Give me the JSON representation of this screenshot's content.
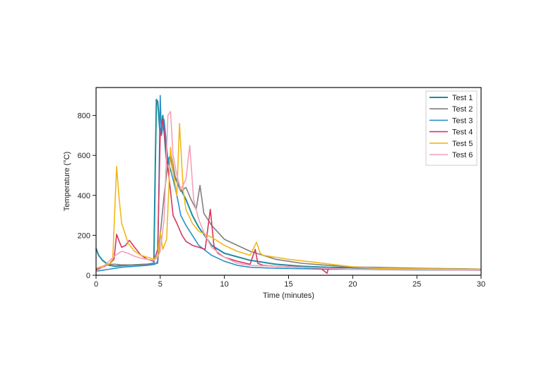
{
  "chart_data": {
    "type": "line",
    "xlabel": "Time (minutes)",
    "ylabel": "Temperature (°C)",
    "xlim": [
      0,
      30
    ],
    "ylim": [
      0,
      940
    ],
    "xticks": [
      0,
      5,
      10,
      15,
      20,
      25,
      30
    ],
    "yticks": [
      0,
      200,
      400,
      600,
      800
    ],
    "grid": false,
    "legend_position": "top-right",
    "series": [
      {
        "name": "Test 1",
        "color": "#1e8c9e",
        "x": [
          0,
          0.2,
          0.5,
          1,
          1.5,
          2,
          3,
          4,
          4.5,
          4.6,
          4.7,
          4.8,
          5.0,
          5.2,
          5.5,
          5.8,
          6,
          6.3,
          6.6,
          7,
          7.5,
          8,
          9,
          10,
          12,
          14,
          16,
          18,
          20,
          22,
          25,
          28,
          30
        ],
        "y": [
          135,
          100,
          75,
          50,
          45,
          48,
          52,
          55,
          60,
          500,
          880,
          870,
          700,
          800,
          560,
          600,
          520,
          470,
          430,
          380,
          300,
          240,
          150,
          110,
          75,
          55,
          45,
          40,
          38,
          35,
          33,
          32,
          30
        ]
      },
      {
        "name": "Test 2",
        "color": "#7f7f7f",
        "x": [
          0,
          0.5,
          1,
          1.5,
          2,
          3,
          4,
          4.8,
          5.0,
          5.3,
          5.6,
          5.9,
          6.2,
          6.6,
          7,
          7.4,
          7.8,
          8.1,
          8.4,
          9,
          10,
          12,
          14,
          16,
          18,
          20,
          25,
          30
        ],
        "y": [
          30,
          45,
          55,
          55,
          52,
          52,
          55,
          60,
          200,
          400,
          560,
          590,
          480,
          420,
          440,
          380,
          330,
          450,
          310,
          250,
          180,
          120,
          80,
          60,
          50,
          42,
          35,
          30
        ]
      },
      {
        "name": "Test 3",
        "color": "#2a8fc9",
        "x": [
          0,
          0.5,
          1,
          1.5,
          2,
          3,
          4,
          4.6,
          4.8,
          4.9,
          5.0,
          5.1,
          5.3,
          5.6,
          6,
          6.3,
          6.6,
          7,
          7.5,
          8,
          9,
          10,
          11,
          12,
          14,
          16,
          18,
          20,
          22,
          25,
          30
        ],
        "y": [
          20,
          25,
          30,
          35,
          40,
          45,
          50,
          55,
          70,
          450,
          900,
          700,
          780,
          580,
          480,
          400,
          300,
          250,
          200,
          150,
          100,
          70,
          50,
          40,
          35,
          33,
          30,
          30,
          28,
          26,
          25
        ]
      },
      {
        "name": "Test 4",
        "color": "#d6375f",
        "x": [
          0,
          0.5,
          1,
          1.4,
          1.6,
          1.8,
          2,
          2.3,
          2.6,
          3,
          3.5,
          4,
          4.5,
          4.8,
          5.0,
          5.2,
          5.5,
          5.8,
          6,
          6.3,
          6.7,
          7,
          7.5,
          8,
          8.5,
          8.9,
          9.2,
          9.5,
          10,
          11,
          12,
          12.4,
          12.6,
          13,
          14,
          16,
          17.5,
          18,
          18.1,
          20,
          25,
          30
        ],
        "y": [
          25,
          40,
          55,
          80,
          205,
          170,
          140,
          150,
          175,
          140,
          100,
          80,
          70,
          130,
          700,
          780,
          600,
          420,
          300,
          260,
          200,
          170,
          150,
          140,
          130,
          330,
          140,
          110,
          90,
          70,
          55,
          130,
          60,
          50,
          45,
          40,
          35,
          10,
          35,
          30,
          28,
          26
        ]
      },
      {
        "name": "Test 5",
        "color": "#f0b81a",
        "x": [
          0,
          0.5,
          1,
          1.3,
          1.5,
          1.6,
          1.8,
          2,
          2.5,
          3,
          3.5,
          4,
          4.5,
          4.8,
          5.0,
          5.2,
          5.5,
          5.8,
          6.0,
          6.3,
          6.5,
          6.8,
          7,
          7.5,
          8,
          9,
          9.5,
          10,
          11,
          12,
          12.5,
          12.8,
          13,
          14,
          15,
          17,
          19,
          20,
          22,
          25,
          30
        ],
        "y": [
          35,
          45,
          55,
          80,
          400,
          545,
          380,
          260,
          160,
          120,
          100,
          90,
          80,
          100,
          220,
          130,
          180,
          640,
          520,
          400,
          760,
          420,
          330,
          260,
          220,
          190,
          170,
          150,
          120,
          100,
          165,
          110,
          100,
          90,
          80,
          65,
          50,
          42,
          35,
          32,
          30
        ]
      },
      {
        "name": "Test 6",
        "color": "#f2a1b7",
        "x": [
          0,
          0.5,
          1,
          1.5,
          2,
          2.5,
          3,
          3.5,
          4,
          4.5,
          4.8,
          5.0,
          5.3,
          5.6,
          5.8,
          6.0,
          6.3,
          6.6,
          7,
          7.3,
          7.6,
          8,
          8.5,
          9,
          10,
          11,
          12,
          14,
          16,
          18,
          20,
          25,
          30
        ],
        "y": [
          20,
          40,
          70,
          100,
          120,
          110,
          95,
          85,
          80,
          75,
          90,
          120,
          280,
          800,
          820,
          600,
          500,
          430,
          480,
          650,
          380,
          280,
          200,
          140,
          90,
          60,
          50,
          45,
          40,
          35,
          30,
          28,
          25
        ]
      }
    ]
  }
}
